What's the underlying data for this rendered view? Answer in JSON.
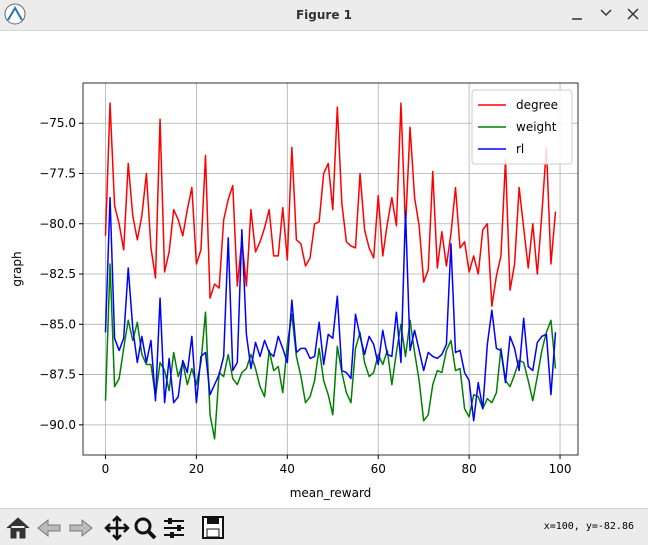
{
  "window": {
    "title": "Figure 1"
  },
  "status": "x=100, y=-82.86",
  "chart_data": {
    "type": "line",
    "xlabel": "mean_reward",
    "ylabel": "graph",
    "xlim": [
      -4.95,
      103.95
    ],
    "ylim": [
      -91.5,
      -73.0
    ],
    "xticks": [
      0,
      20,
      40,
      60,
      80,
      100
    ],
    "yticks": [
      {
        "value": -90,
        "label": "−90.0"
      },
      {
        "value": -87.5,
        "label": "−87.5"
      },
      {
        "value": -85,
        "label": "−85.0"
      },
      {
        "value": -82.5,
        "label": "−82.5"
      },
      {
        "value": -80,
        "label": "−80.0"
      },
      {
        "value": -77.5,
        "label": "−77.5"
      },
      {
        "value": -75,
        "label": "−75.0"
      }
    ],
    "grid": true,
    "legend": "upper right",
    "x": [
      0,
      1,
      2,
      3,
      4,
      5,
      6,
      7,
      8,
      9,
      10,
      11,
      12,
      13,
      14,
      15,
      16,
      17,
      18,
      19,
      20,
      21,
      22,
      23,
      24,
      25,
      26,
      27,
      28,
      29,
      30,
      31,
      32,
      33,
      34,
      35,
      36,
      37,
      38,
      39,
      40,
      41,
      42,
      43,
      44,
      45,
      46,
      47,
      48,
      49,
      50,
      51,
      52,
      53,
      54,
      55,
      56,
      57,
      58,
      59,
      60,
      61,
      62,
      63,
      64,
      65,
      66,
      67,
      68,
      69,
      70,
      71,
      72,
      73,
      74,
      75,
      76,
      77,
      78,
      79,
      80,
      81,
      82,
      83,
      84,
      85,
      86,
      87,
      88,
      89,
      90,
      91,
      92,
      93,
      94,
      95,
      96,
      97,
      98,
      99
    ],
    "series": [
      {
        "name": "degree",
        "color": "#ff0000",
        "values": [
          -80.6,
          -74.0,
          -79.1,
          -80.0,
          -81.3,
          -77.0,
          -79.6,
          -80.8,
          -79.6,
          -77.5,
          -81.2,
          -82.7,
          -74.8,
          -82.4,
          -81.4,
          -79.3,
          -79.8,
          -80.6,
          -79.3,
          -78.2,
          -82.0,
          -81.3,
          -76.6,
          -83.7,
          -83.0,
          -83.2,
          -79.8,
          -78.8,
          -78.1,
          -83.1,
          -80.8,
          -83.1,
          -79.3,
          -81.4,
          -80.9,
          -80.2,
          -79.3,
          -81.6,
          -81.6,
          -79.2,
          -81.8,
          -76.2,
          -80.8,
          -81.0,
          -82.1,
          -81.7,
          -80.0,
          -79.9,
          -77.5,
          -77.0,
          -79.3,
          -74.2,
          -79.0,
          -80.9,
          -81.1,
          -81.2,
          -77.5,
          -80.3,
          -81.2,
          -81.7,
          -78.6,
          -81.6,
          -80.0,
          -78.7,
          -80.1,
          -74.0,
          -80.2,
          -75.2,
          -78.7,
          -80.1,
          -82.9,
          -82.3,
          -77.4,
          -82.2,
          -80.4,
          -82.1,
          -80.5,
          -78.2,
          -81.2,
          -80.9,
          -82.4,
          -81.6,
          -82.5,
          -80.3,
          -80.0,
          -84.1,
          -82.6,
          -81.6,
          -76.8,
          -83.3,
          -82.0,
          -78.2,
          -80.2,
          -82.2,
          -80.0,
          -82.5,
          -79.5,
          -76.2,
          -82.0,
          -79.4
        ]
      },
      {
        "name": "weight",
        "color": "#008000",
        "values": [
          -88.8,
          -82.0,
          -88.1,
          -87.7,
          -86.2,
          -84.8,
          -85.8,
          -84.9,
          -86.5,
          -87.0,
          -87.0,
          -88.6,
          -86.9,
          -87.3,
          -88.3,
          -86.4,
          -87.6,
          -86.9,
          -88.0,
          -87.2,
          -88.0,
          -86.9,
          -84.4,
          -89.5,
          -90.7,
          -87.4,
          -87.6,
          -86.5,
          -87.7,
          -88.0,
          -87.4,
          -87.2,
          -86.5,
          -87.2,
          -88.1,
          -88.6,
          -86.3,
          -87.3,
          -87.1,
          -88.4,
          -86.0,
          -84.5,
          -86.6,
          -87.6,
          -88.9,
          -88.6,
          -87.8,
          -86.2,
          -87.8,
          -88.5,
          -89.5,
          -86.1,
          -87.4,
          -88.4,
          -88.9,
          -86.2,
          -85.4,
          -86.9,
          -87.6,
          -87.4,
          -86.5,
          -87.0,
          -86.3,
          -88.0,
          -86.4,
          -85.0,
          -86.6,
          -84.8,
          -86.4,
          -87.8,
          -89.8,
          -89.5,
          -88.0,
          -87.3,
          -87.4,
          -86.3,
          -85.8,
          -87.3,
          -87.2,
          -89.2,
          -89.6,
          -88.5,
          -88.6,
          -89.2,
          -88.7,
          -88.9,
          -88.4,
          -86.2,
          -87.8,
          -88.1,
          -87.5,
          -86.8,
          -86.9,
          -87.8,
          -88.8,
          -87.6,
          -86.3,
          -85.4,
          -84.8,
          -87.2
        ]
      },
      {
        "name": "rl",
        "color": "#0000ff",
        "values": [
          -85.4,
          -78.7,
          -85.7,
          -86.3,
          -85.7,
          -82.2,
          -85.2,
          -86.9,
          -85.6,
          -86.9,
          -85.8,
          -88.8,
          -83.7,
          -88.9,
          -86.7,
          -88.9,
          -88.6,
          -86.8,
          -87.4,
          -85.6,
          -88.9,
          -86.6,
          -86.4,
          -88.5,
          -88.0,
          -87.5,
          -86.6,
          -80.7,
          -87.3,
          -86.9,
          -80.3,
          -85.5,
          -87.2,
          -85.9,
          -86.6,
          -85.8,
          -86.4,
          -86.6,
          -85.6,
          -86.2,
          -86.9,
          -83.8,
          -86.4,
          -86.2,
          -86.2,
          -86.7,
          -86.6,
          -84.9,
          -87.0,
          -85.5,
          -85.7,
          -83.6,
          -87.3,
          -87.4,
          -87.7,
          -84.5,
          -85.6,
          -86.5,
          -85.6,
          -86.0,
          -87.0,
          -85.3,
          -86.5,
          -86.6,
          -84.4,
          -86.9,
          -79.4,
          -86.3,
          -85.3,
          -86.3,
          -87.3,
          -86.4,
          -86.6,
          -86.7,
          -86.5,
          -86.0,
          -81.0,
          -86.4,
          -86.3,
          -87.4,
          -87.8,
          -89.8,
          -87.9,
          -89.2,
          -86.0,
          -84.3,
          -86.2,
          -86.3,
          -87.9,
          -85.6,
          -86.2,
          -87.3,
          -84.7,
          -87.1,
          -87.3,
          -85.9,
          -85.6,
          -85.5,
          -88.5,
          -85.4
        ]
      }
    ]
  }
}
